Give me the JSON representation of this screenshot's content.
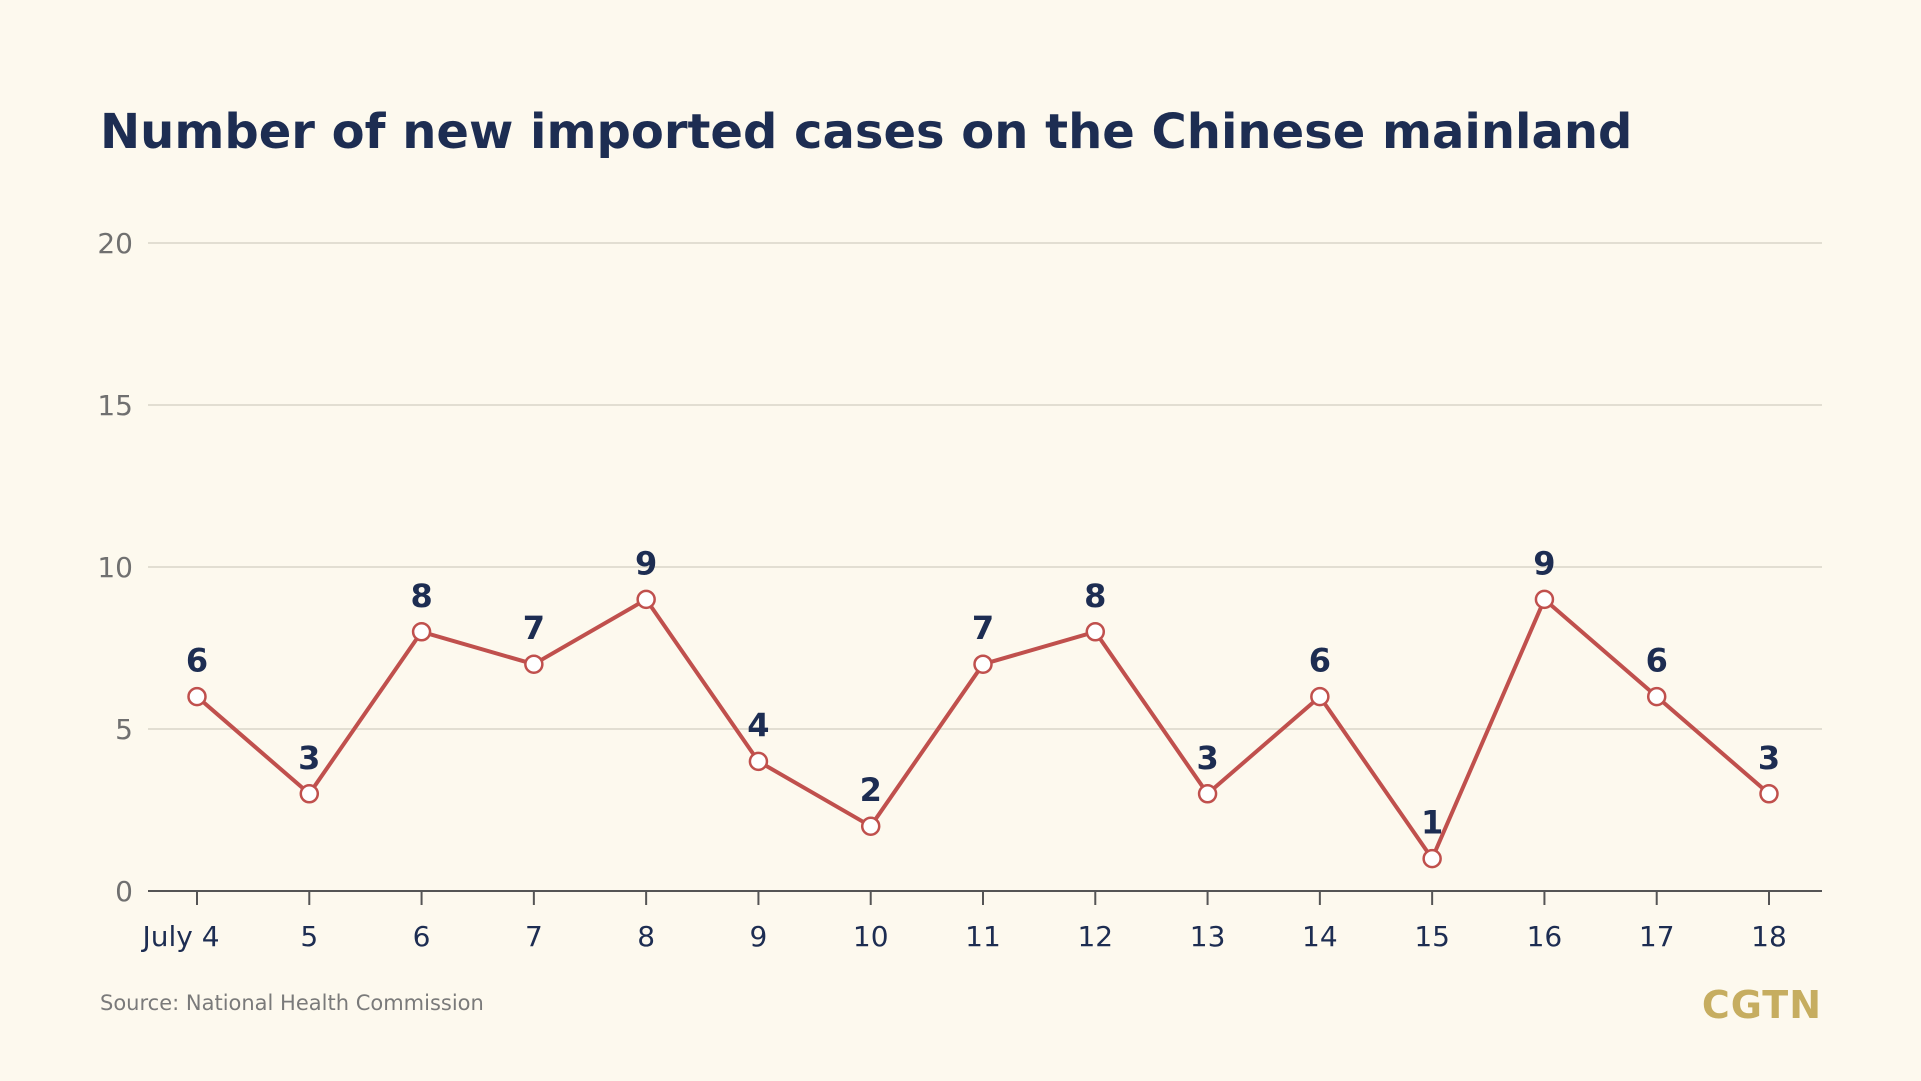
{
  "chart_data": {
    "type": "line",
    "title": "Number of new imported cases on the Chinese mainland",
    "categories": [
      "July 4",
      "5",
      "6",
      "7",
      "8",
      "9",
      "10",
      "11",
      "12",
      "13",
      "14",
      "15",
      "16",
      "17",
      "18"
    ],
    "series": [
      {
        "values": [
          6,
          3,
          8,
          7,
          9,
          4,
          2,
          7,
          8,
          3,
          6,
          1,
          9,
          6,
          3
        ]
      }
    ],
    "ylim": [
      0,
      20
    ],
    "yticks": [
      0,
      5,
      10,
      15,
      20
    ],
    "grid": true,
    "data_labels": true,
    "line_color": "#c0504d"
  },
  "source": "Source: National Health Commission",
  "logo": "CGTN",
  "colors": {
    "background": "#fdf9ee",
    "title": "#1d2d52",
    "grid": "#d9d6c8",
    "axis": "#555555",
    "logo": "#c6ad60"
  }
}
